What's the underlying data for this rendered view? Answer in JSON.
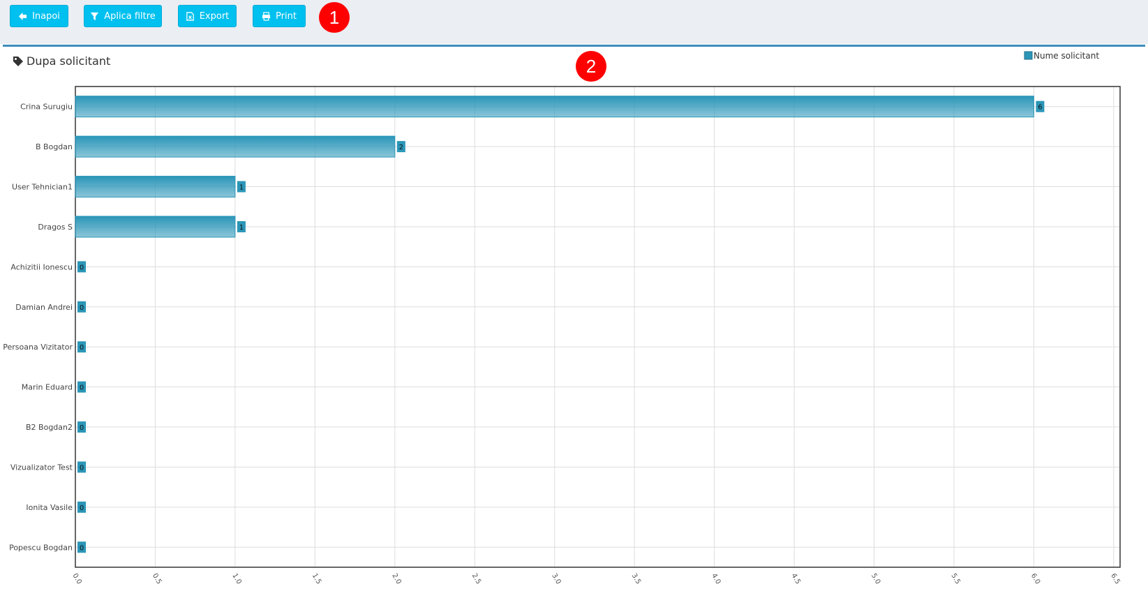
{
  "toolbar": {
    "buttons": [
      "Inapoi",
      "Aplica filtre",
      "Export",
      "Print"
    ]
  },
  "badges": [
    "1",
    "2"
  ],
  "panel": {
    "title": "Dupa solicitant"
  },
  "chart_data": {
    "type": "bar",
    "orientation": "horizontal",
    "categories": [
      "Crina Surugiu",
      "B Bogdan",
      "User Tehnician1",
      "Dragos S",
      "Achizitii Ionescu",
      "Damian Andrei",
      "Persoana Vizitator",
      "Marin Eduard",
      "B2 Bogdan2",
      "Vizualizator Test",
      "Ionita Vasile",
      "Popescu Bogdan"
    ],
    "series": [
      {
        "name": "Nume solicitant",
        "color": "#2b96b8",
        "values": [
          6,
          2,
          1,
          1,
          0,
          0,
          0,
          0,
          0,
          0,
          0,
          0
        ]
      }
    ],
    "xlim": [
      0,
      6.54
    ],
    "xticks": [
      {
        "value": 0,
        "label": "0.0"
      },
      0.5,
      {
        "value": 1,
        "label": "1.0"
      },
      1.5,
      {
        "value": 2,
        "label": "2.0"
      },
      2.5,
      {
        "value": 3,
        "label": "3.0"
      },
      3.5,
      {
        "value": 4,
        "label": "4.0"
      },
      4.5,
      {
        "value": 5,
        "label": "5.0"
      },
      5.5,
      {
        "value": 6,
        "label": "6.0"
      },
      6.5
    ],
    "grid": true,
    "legend": "top-right"
  }
}
